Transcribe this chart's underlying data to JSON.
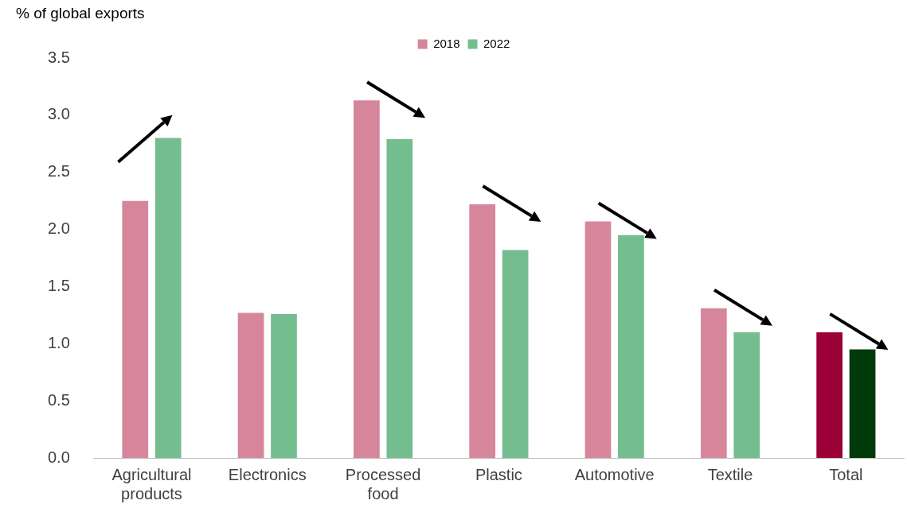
{
  "chart_data": {
    "type": "bar",
    "ylabel": "% of global exports",
    "categories": [
      "Agricultural products",
      "Electronics",
      "Processed food",
      "Plastic",
      "Automotive",
      "Textile",
      "Total"
    ],
    "series": [
      {
        "name": "2018",
        "color": "#d6869a",
        "colors": [
          "#d6869a",
          "#d6869a",
          "#d6869a",
          "#d6869a",
          "#d6869a",
          "#d6869a",
          "#9b0036"
        ],
        "values": [
          2.25,
          1.27,
          3.13,
          2.22,
          2.07,
          1.31,
          1.1
        ]
      },
      {
        "name": "2022",
        "color": "#74bd8e",
        "colors": [
          "#74bd8e",
          "#74bd8e",
          "#74bd8e",
          "#74bd8e",
          "#74bd8e",
          "#74bd8e",
          "#003a0a"
        ],
        "values": [
          2.8,
          1.26,
          2.79,
          1.82,
          1.95,
          1.1,
          0.95
        ]
      }
    ],
    "ylim": [
      0,
      3.5
    ],
    "yticks": [
      {
        "value": 0,
        "label": "0.0"
      },
      0.5,
      {
        "value": 1,
        "label": "1.0"
      },
      1.5,
      {
        "value": 2,
        "label": "2.0"
      },
      2.5,
      {
        "value": 3,
        "label": "3.0"
      },
      3.5
    ],
    "grid": false,
    "legend": "top"
  }
}
